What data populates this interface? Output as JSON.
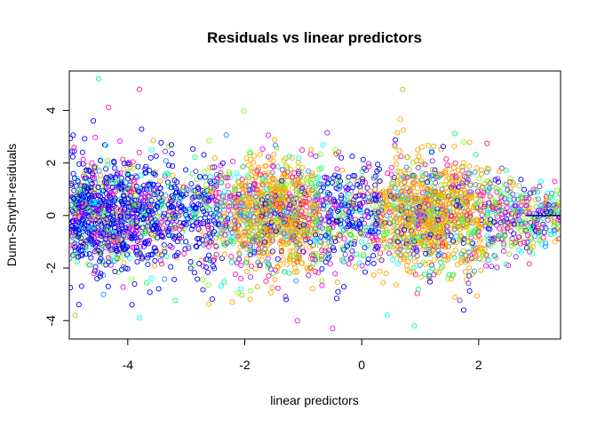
{
  "chart_data": {
    "type": "scatter",
    "title": "Residuals vs linear predictors",
    "xlabel": "linear predictors",
    "ylabel": "Dunn-Smyth-residuals",
    "xlim": [
      -5,
      3.4
    ],
    "ylim": [
      -4.7,
      5.5
    ],
    "x_ticks": [
      -4,
      -2,
      0,
      2
    ],
    "x_tick_labels": [
      "-4",
      "-2",
      "0",
      "2"
    ],
    "y_ticks": [
      -4,
      -2,
      0,
      2,
      4
    ],
    "y_tick_labels": [
      "-4",
      "-2",
      "0",
      "2",
      "4"
    ],
    "grid": false,
    "legend": "none",
    "marker": "open-circle",
    "reference_line": {
      "y": 0,
      "color": "#00008b"
    },
    "point_colors": [
      "#0000ff",
      "#ffa500",
      "#00ff7f",
      "#00ffff",
      "#ff00ff",
      "#9acd32",
      "#7fff00",
      "#8a2be2",
      "#ff1493",
      "#1e90ff"
    ],
    "point_cloud": {
      "x_range": [
        -5,
        3.4
      ],
      "residual_sd": 1.05,
      "density_peaks_x": [
        -4.3,
        -1.5,
        1.2
      ],
      "notable_points": [
        {
          "x": -4.5,
          "y": 5.2,
          "color": "#00ff7f"
        },
        {
          "x": -3.8,
          "y": 4.8,
          "color": "#ff1493"
        },
        {
          "x": 0.7,
          "y": 4.8,
          "color": "#9acd32"
        },
        {
          "x": -0.5,
          "y": -4.3,
          "color": "#ff00ff"
        },
        {
          "x": -1.1,
          "y": -4.0,
          "color": "#ff00ff"
        },
        {
          "x": -4.9,
          "y": -3.8,
          "color": "#9acd32"
        },
        {
          "x": -3.8,
          "y": -3.9,
          "color": "#00ffff"
        },
        {
          "x": 0.9,
          "y": -4.2,
          "color": "#00ff7f"
        },
        {
          "x": 3.3,
          "y": -1.0,
          "color": "#ffa500"
        },
        {
          "x": 3.3,
          "y": 1.3,
          "color": "#ff00ff"
        }
      ]
    }
  }
}
